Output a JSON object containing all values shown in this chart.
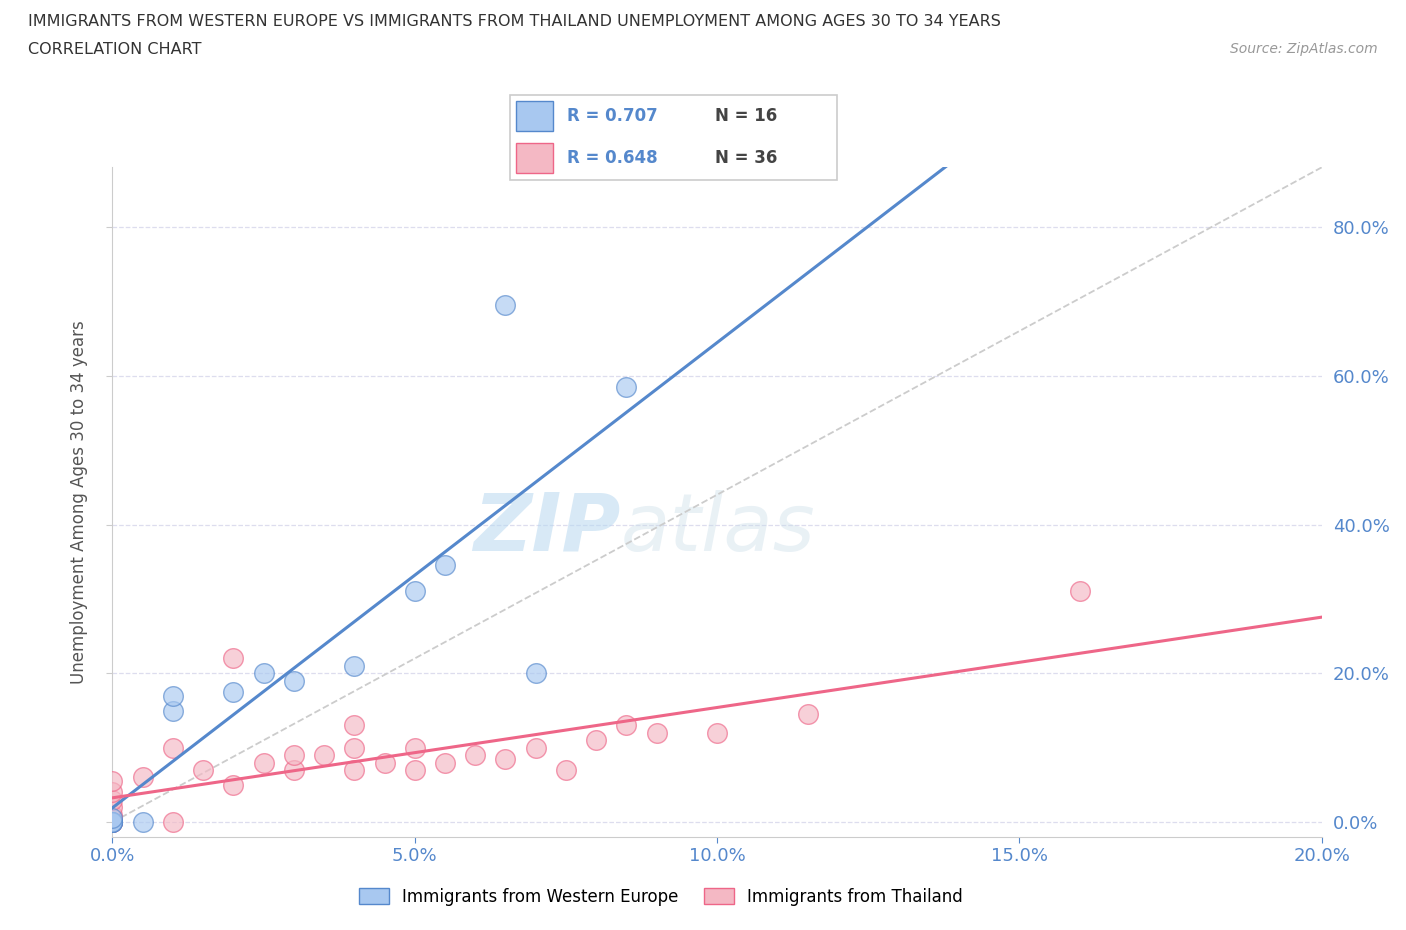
{
  "title_line1": "IMMIGRANTS FROM WESTERN EUROPE VS IMMIGRANTS FROM THAILAND UNEMPLOYMENT AMONG AGES 30 TO 34 YEARS",
  "title_line2": "CORRELATION CHART",
  "source": "Source: ZipAtlas.com",
  "ylabel": "Unemployment Among Ages 30 to 34 years",
  "xlim": [
    0.0,
    0.2
  ],
  "ylim": [
    -0.02,
    0.88
  ],
  "xticks": [
    0.0,
    0.05,
    0.1,
    0.15,
    0.2
  ],
  "yticks": [
    0.0,
    0.2,
    0.4,
    0.6,
    0.8
  ],
  "ytick_labels_right": [
    "0.0%",
    "20.0%",
    "40.0%",
    "60.0%",
    "80.0%"
  ],
  "xtick_labels": [
    "0.0%",
    "5.0%",
    "10.0%",
    "15.0%",
    "20.0%"
  ],
  "legend_r1": "R = 0.707",
  "legend_n1": "N = 16",
  "legend_r2": "R = 0.648",
  "legend_n2": "N = 36",
  "color_western": "#a8c8f0",
  "color_thailand": "#f4b8c4",
  "color_western_line": "#5588cc",
  "color_thailand_line": "#ee6688",
  "color_diagonal": "#cccccc",
  "western_europe_x": [
    0.0,
    0.0,
    0.0,
    0.0,
    0.0,
    0.005,
    0.01,
    0.01,
    0.02,
    0.025,
    0.03,
    0.04,
    0.05,
    0.055,
    0.07,
    0.085
  ],
  "western_europe_y": [
    0.0,
    0.0,
    0.0,
    0.0,
    0.005,
    0.0,
    0.15,
    0.17,
    0.175,
    0.2,
    0.19,
    0.21,
    0.31,
    0.345,
    0.2,
    0.585
  ],
  "western_europe_outlier_x": [
    0.065
  ],
  "western_europe_outlier_y": [
    0.695
  ],
  "thailand_x": [
    0.0,
    0.0,
    0.0,
    0.0,
    0.0,
    0.0,
    0.0,
    0.0,
    0.0,
    0.005,
    0.01,
    0.01,
    0.015,
    0.02,
    0.02,
    0.025,
    0.03,
    0.03,
    0.035,
    0.04,
    0.04,
    0.04,
    0.045,
    0.05,
    0.05,
    0.055,
    0.06,
    0.065,
    0.07,
    0.075,
    0.08,
    0.085,
    0.09,
    0.1,
    0.115,
    0.16
  ],
  "thailand_y": [
    0.0,
    0.0,
    0.0,
    0.005,
    0.01,
    0.02,
    0.03,
    0.04,
    0.055,
    0.06,
    0.0,
    0.1,
    0.07,
    0.05,
    0.22,
    0.08,
    0.07,
    0.09,
    0.09,
    0.07,
    0.1,
    0.13,
    0.08,
    0.07,
    0.1,
    0.08,
    0.09,
    0.085,
    0.1,
    0.07,
    0.11,
    0.13,
    0.12,
    0.12,
    0.145,
    0.31
  ],
  "thailand_outlier_x": [
    0.145
  ],
  "thailand_outlier_y": [
    0.31
  ],
  "watermark_zip": "ZIP",
  "watermark_atlas": "atlas"
}
